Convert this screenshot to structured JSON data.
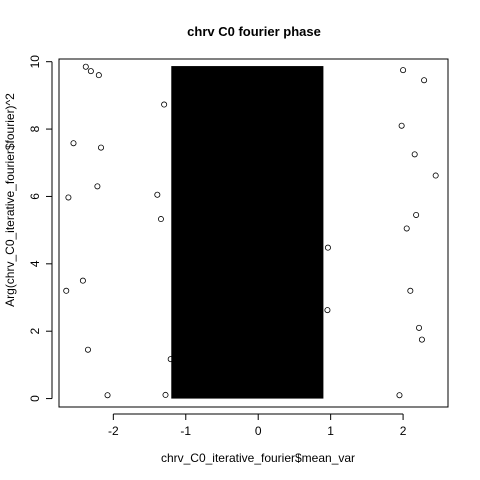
{
  "chart_data": {
    "type": "scatter",
    "title": "chrv C0 fourier phase",
    "xlabel": "chrv_C0_iterative_fourier$mean_var",
    "ylabel": "Arg(chrv_C0_iterative_fourier$fourier)^2",
    "xlim": [
      -2.75,
      2.62
    ],
    "ylim": [
      -0.25,
      10.08
    ],
    "x_ticks": [
      -2,
      -1,
      0,
      1,
      2
    ],
    "y_ticks": [
      0,
      2,
      4,
      6,
      8,
      10
    ],
    "y_max_value": 9.87,
    "marker": "open-circle",
    "color": "#000000",
    "dense_core": {
      "x_range": [
        -1.2,
        0.9
      ],
      "y_range": [
        0,
        9.87
      ]
    },
    "sample_points": [
      {
        "x": -2.62,
        "y": 5.97
      },
      {
        "x": -2.55,
        "y": 7.58
      },
      {
        "x": -2.65,
        "y": 3.2
      },
      {
        "x": -2.42,
        "y": 3.5
      },
      {
        "x": -2.35,
        "y": 1.45
      },
      {
        "x": -2.38,
        "y": 9.85
      },
      {
        "x": -2.31,
        "y": 9.72
      },
      {
        "x": -2.2,
        "y": 9.6
      },
      {
        "x": -2.22,
        "y": 6.3
      },
      {
        "x": -2.17,
        "y": 7.45
      },
      {
        "x": -2.08,
        "y": 0.1
      },
      {
        "x": 2.45,
        "y": 6.62
      },
      {
        "x": 2.29,
        "y": 9.45
      },
      {
        "x": 2.18,
        "y": 5.45
      },
      {
        "x": 2.22,
        "y": 2.1
      },
      {
        "x": 2.26,
        "y": 1.75
      },
      {
        "x": 2.16,
        "y": 7.25
      },
      {
        "x": 2.0,
        "y": 9.75
      },
      {
        "x": 2.05,
        "y": 5.05
      },
      {
        "x": 1.95,
        "y": 0.1
      },
      {
        "x": 2.1,
        "y": 3.2
      },
      {
        "x": 1.98,
        "y": 8.1
      }
    ]
  }
}
